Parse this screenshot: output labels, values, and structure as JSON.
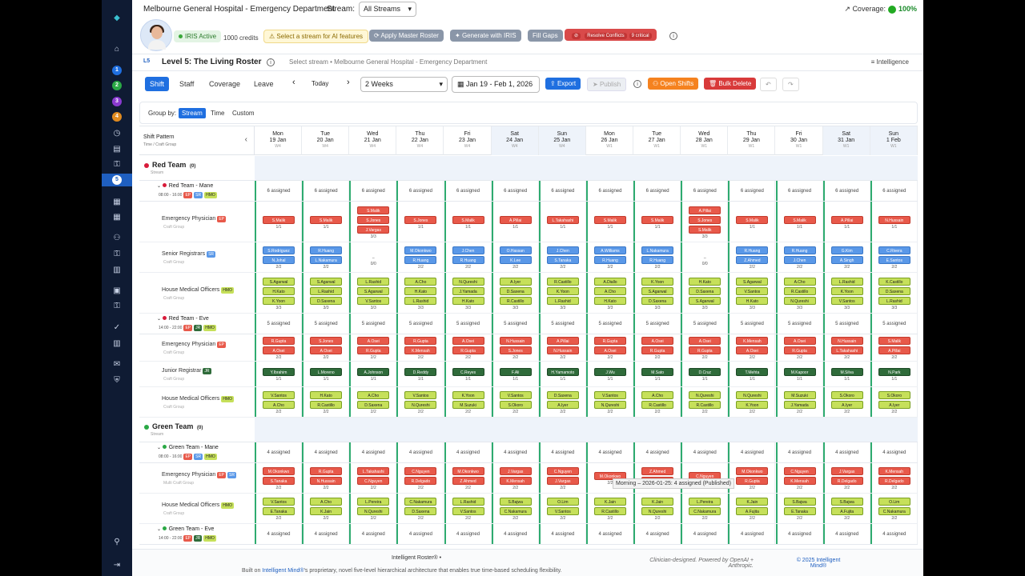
{
  "header": {
    "hospital": "Melbourne General Hospital - Emergency Department",
    "stream_label": "Stream:",
    "stream_value": "All Streams",
    "coverage_label": "Coverage:",
    "coverage_value": "100%"
  },
  "ai": {
    "iris": "IRIS Active",
    "credits": "1000 credits",
    "warn": "Select a stream for AI features",
    "apply": "Apply Master Roster",
    "generate": "Generate with IRIS",
    "fill": "Fill Gaps",
    "resolve": "Resolve Conflicts",
    "critical": "9 critical"
  },
  "title": {
    "level": "L5",
    "name": "Level 5: The Living Roster",
    "breadcrumb": "Select stream • Melbourne General Hospital - Emergency Department",
    "intelligence": "Intelligence"
  },
  "toolbar": {
    "tabs": [
      "Shift",
      "Staff",
      "Coverage",
      "Leave"
    ],
    "today": "Today",
    "range": "2 Weeks",
    "dates": "Jan 19 - Feb 1, 2026",
    "export": "Export",
    "publish": "Publish",
    "open_shifts": "Open Shifts",
    "bulk_delete": "Bulk Delete"
  },
  "groupby": {
    "label": "Group by:",
    "options": [
      "Stream",
      "Time",
      "Custom"
    ]
  },
  "grid": {
    "col_title": "Shift Pattern",
    "col_sub": "Time / Craft Group",
    "days": [
      {
        "d": "Mon",
        "dt": "19 Jan",
        "w": "W4"
      },
      {
        "d": "Tue",
        "dt": "20 Jan",
        "w": "W4"
      },
      {
        "d": "Wed",
        "dt": "21 Jan",
        "w": "W4"
      },
      {
        "d": "Thu",
        "dt": "22 Jan",
        "w": "W4"
      },
      {
        "d": "Fri",
        "dt": "23 Jan",
        "w": "W4"
      },
      {
        "d": "Sat",
        "dt": "24 Jan",
        "w": "W4"
      },
      {
        "d": "Sun",
        "dt": "25 Jan",
        "w": "W4"
      },
      {
        "d": "Mon",
        "dt": "26 Jan",
        "w": "W1"
      },
      {
        "d": "Tue",
        "dt": "27 Jan",
        "w": "W1"
      },
      {
        "d": "Wed",
        "dt": "28 Jan",
        "w": "W1"
      },
      {
        "d": "Thu",
        "dt": "29 Jan",
        "w": "W1"
      },
      {
        "d": "Fri",
        "dt": "30 Jan",
        "w": "W1"
      },
      {
        "d": "Sat",
        "dt": "31 Jan",
        "w": "W1"
      },
      {
        "d": "Sun",
        "dt": "1 Feb",
        "w": "W1"
      }
    ],
    "teams": [
      {
        "name": "Red Team",
        "count": "(0)",
        "sub": "Stream",
        "color": "#d81b3a",
        "shifts": [
          {
            "name": "Red Team - Mane",
            "time": "08:00 - 16:00",
            "tags": [
              "EP",
              "SR",
              "HMO"
            ],
            "assigned": [
              "6 assigned",
              "6 assigned",
              "6 assigned",
              "6 assigned",
              "6 assigned",
              "6 assigned",
              "6 assigned",
              "6 assigned",
              "6 assigned",
              "6 assigned",
              "6 assigned",
              "6 assigned",
              "6 assigned",
              "6 assigned"
            ],
            "crafts": [
              {
                "name": "Emergency Physician",
                "tag": "EP",
                "type": "ep",
                "h": 51,
                "cells": [
                  [
                    "S.Malik",
                    "1/1"
                  ],
                  [
                    "S.Malik",
                    "1/1"
                  ],
                  [
                    "S.Malik|S.Jones|J.Vargas",
                    "3/3"
                  ],
                  [
                    "S.Jones",
                    "1/1"
                  ],
                  [
                    "S.Malik",
                    "1/1"
                  ],
                  [
                    "A.Pillai",
                    "1/1"
                  ],
                  [
                    "L.Takahashi",
                    "1/1"
                  ],
                  [
                    "S.Malik",
                    "1/1"
                  ],
                  [
                    "S.Malik",
                    "1/1"
                  ],
                  [
                    "A.Pillai|S.Jones|S.Malik",
                    "3/3"
                  ],
                  [
                    "S.Malik",
                    "1/1"
                  ],
                  [
                    "S.Malik",
                    "1/1"
                  ],
                  [
                    "A.Pillai",
                    "1/1"
                  ],
                  [
                    "N.Hussain",
                    "1/1"
                  ]
                ]
              },
              {
                "name": "Senior Registrars",
                "tag": "SR",
                "type": "sr",
                "h": 38,
                "cells": [
                  [
                    "S.Rodriguez|N.Johal",
                    "2/2"
                  ],
                  [
                    "R.Huang|L.Nakamura",
                    "2/2"
                  ],
                  [
                    "",
                    "0/0"
                  ],
                  [
                    "M.Okonkwo|R.Huang",
                    "2/2"
                  ],
                  [
                    "J.Chen|R.Huang",
                    "2/2"
                  ],
                  [
                    "O.Hassan|K.Lee",
                    "2/2"
                  ],
                  [
                    "J.Chen|S.Tanaka",
                    "2/2"
                  ],
                  [
                    "A.Williams|R.Huang",
                    "2/2"
                  ],
                  [
                    "L.Nakamura|R.Huang",
                    "2/2"
                  ],
                  [
                    "",
                    "0/0"
                  ],
                  [
                    "R.Huang|Z.Ahmed",
                    "2/2"
                  ],
                  [
                    "R.Huang|J.Chen",
                    "2/2"
                  ],
                  [
                    "G.Kim|A.Singh",
                    "2/2"
                  ],
                  [
                    "C.Rivera|E.Santos",
                    "2/2"
                  ]
                ]
              },
              {
                "name": "House Medical Officers",
                "tag": "HMO",
                "type": "hmo",
                "h": 51,
                "cells": [
                  [
                    "S.Agarwal|H.Kato|K.Yoon",
                    "3/3"
                  ],
                  [
                    "S.Agarwal|L.Rashid|D.Saxena",
                    "3/3"
                  ],
                  [
                    "L.Rashid|S.Agarwal|V.Santos",
                    "3/3"
                  ],
                  [
                    "A.Cho|H.Kato|L.Rashid",
                    "3/3"
                  ],
                  [
                    "N.Qureshi|J.Yamada|H.Kato",
                    "3/3"
                  ],
                  [
                    "A.Iyer|D.Saxena|R.Castillo",
                    "3/3"
                  ],
                  [
                    "R.Castillo|K.Yoon|L.Rashid",
                    "3/3"
                  ],
                  [
                    "A.Diallo|A.Cho|H.Kato",
                    "3/3"
                  ],
                  [
                    "K.Yoon|S.Agarwal|D.Saxena",
                    "3/3"
                  ],
                  [
                    "H.Kato|D.Saxena|S.Agarwal",
                    "3/3"
                  ],
                  [
                    "S.Agarwal|V.Santos|H.Kato",
                    "3/3"
                  ],
                  [
                    "A.Cho|R.Castillo|N.Qureshi",
                    "3/3"
                  ],
                  [
                    "L.Rashid|K.Yoon|V.Santos",
                    "3/3"
                  ],
                  [
                    "K.Castillo|D.Saxena|L.Rashid",
                    "3/3"
                  ]
                ]
              }
            ]
          },
          {
            "name": "Red Team - Eve",
            "time": "14:00 - 22:00",
            "tags": [
              "EP",
              "JR",
              "HMO"
            ],
            "assigned": [
              "5 assigned",
              "5 assigned",
              "5 assigned",
              "5 assigned",
              "5 assigned",
              "5 assigned",
              "5 assigned",
              "5 assigned",
              "5 assigned",
              "5 assigned",
              "5 assigned",
              "5 assigned",
              "5 assigned",
              "5 assigned"
            ],
            "crafts": [
              {
                "name": "Emergency Physician",
                "tag": "EP",
                "type": "ep",
                "h": 34,
                "cells": [
                  [
                    "R.Gupta|A.Osei",
                    "2/2"
                  ],
                  [
                    "S.Jones|A.Osei",
                    "2/2"
                  ],
                  [
                    "A.Osei|R.Gupta",
                    "2/2"
                  ],
                  [
                    "R.Gupta|K.Mensah",
                    "2/2"
                  ],
                  [
                    "A.Osei|R.Gupta",
                    "2/2"
                  ],
                  [
                    "N.Hussain|S.Jones",
                    "2/2"
                  ],
                  [
                    "A.Pillai|N.Hussain",
                    "2/2"
                  ],
                  [
                    "R.Gupta|A.Osei",
                    "2/2"
                  ],
                  [
                    "A.Osei|R.Gupta",
                    "2/2"
                  ],
                  [
                    "A.Osei|R.Gupta",
                    "2/2"
                  ],
                  [
                    "K.Mensah|A.Osei",
                    "2/2"
                  ],
                  [
                    "A.Osei|R.Gupta",
                    "2/2"
                  ],
                  [
                    "N.Hussain|L.Takahashi",
                    "2/2"
                  ],
                  [
                    "S.Malik|A.Pillai",
                    "2/2"
                  ]
                ]
              },
              {
                "name": "Junior Registrar",
                "tag": "JR",
                "type": "jr",
                "h": 32,
                "cells": [
                  [
                    "Y.Ibrahim",
                    "1/1"
                  ],
                  [
                    "L.Moreno",
                    "1/1"
                  ],
                  [
                    "A.Johnson",
                    "1/1"
                  ],
                  [
                    "D.Reddy",
                    "1/1"
                  ],
                  [
                    "C.Reyes",
                    "1/1"
                  ],
                  [
                    "F.Ali",
                    "1/1"
                  ],
                  [
                    "H.Yamamoto",
                    "1/1"
                  ],
                  [
                    "J.Wu",
                    "1/1"
                  ],
                  [
                    "M.Sato",
                    "1/1"
                  ],
                  [
                    "D.Cruz",
                    "1/1"
                  ],
                  [
                    "T.Mehta",
                    "1/1"
                  ],
                  [
                    "M.Kapoor",
                    "1/1"
                  ],
                  [
                    "M.Silva",
                    "1/1"
                  ],
                  [
                    "N.Park",
                    "1/1"
                  ]
                ]
              },
              {
                "name": "House Medical Officers",
                "tag": "HMO",
                "type": "hmo",
                "h": 38,
                "cells": [
                  [
                    "V.Santos|A.Cho",
                    "2/2"
                  ],
                  [
                    "H.Kato|R.Castillo",
                    "2/2"
                  ],
                  [
                    "A.Cho|D.Saxena",
                    "2/2"
                  ],
                  [
                    "V.Santos|N.Qureshi",
                    "2/2"
                  ],
                  [
                    "K.Yoon|M.Suzuki",
                    "2/2"
                  ],
                  [
                    "V.Santos|S.Okoro",
                    "2/2"
                  ],
                  [
                    "D.Saxena|A.Iyer",
                    "2/2"
                  ],
                  [
                    "V.Santos|N.Qureshi",
                    "2/2"
                  ],
                  [
                    "A.Cho|R.Castillo",
                    "2/2"
                  ],
                  [
                    "N.Qureshi|R.Castillo",
                    "2/2"
                  ],
                  [
                    "N.Qureshi|K.Yoon",
                    "2/2"
                  ],
                  [
                    "M.Suzuki|J.Yamada",
                    "2/2"
                  ],
                  [
                    "S.Okoro|A.Iyer",
                    "2/2"
                  ],
                  [
                    "S.Okoro|A.Iyer",
                    "2/2"
                  ]
                ]
              }
            ]
          }
        ]
      },
      {
        "name": "Green Team",
        "count": "(0)",
        "sub": "Stream",
        "color": "#2aa845",
        "shifts": [
          {
            "name": "Green Team - Mane",
            "time": "08:00 - 16:00",
            "tags": [
              "EP",
              "SR",
              "HMO"
            ],
            "assigned": [
              "4 assigned",
              "4 assigned",
              "4 assigned",
              "4 assigned",
              "4 assigned",
              "4 assigned",
              "4 assigned",
              "4 assigned",
              "4 assigned",
              "4 assigned",
              "4 assigned",
              "4 assigned",
              "4 assigned",
              "4 assigned"
            ],
            "crafts": [
              {
                "name": "Emergency Physician",
                "tag": "EP",
                "type": "ep",
                "h": 38,
                "sub": "Multi Craft Group",
                "tags": [
                  "EP",
                  "SR"
                ],
                "cells": [
                  [
                    "M.Okonkwo|S.Tanaka",
                    "2/2"
                  ],
                  [
                    "R.Gupta|N.Hussain",
                    "2/2"
                  ],
                  [
                    "L.Takahashi|C.Nguyen",
                    "2/2"
                  ],
                  [
                    "C.Nguyen|R.Delgado",
                    "2/2"
                  ],
                  [
                    "M.Okonkwo|Z.Ahmed",
                    "2/2"
                  ],
                  [
                    "J.Vargas|K.Mensah",
                    "2/2"
                  ],
                  [
                    "C.Nguyen|J.Vargas",
                    "2/2"
                  ],
                  [
                    "M.Okonkwo|",
                    "2/2"
                  ],
                  [
                    "Z.Ahmed|K.Mensah",
                    "2/2"
                  ],
                  [
                    "C.Nguyen|",
                    "2/2"
                  ],
                  [
                    "M.Okonkwo|R.Gupta",
                    "2/2"
                  ],
                  [
                    "C.Nguyen|K.Mensah",
                    "2/2"
                  ],
                  [
                    "J.Vargas|R.Delgado",
                    "2/2"
                  ],
                  [
                    "K.Mensah|R.Delgado",
                    "2/2"
                  ]
                ]
              },
              {
                "name": "House Medical Officers",
                "tag": "HMO",
                "type": "hmo",
                "h": 38,
                "cells": [
                  [
                    "V.Santos|E.Tanaka",
                    "2/2"
                  ],
                  [
                    "A.Cho|K.Jain",
                    "2/2"
                  ],
                  [
                    "L.Pereira|N.Qureshi",
                    "2/2"
                  ],
                  [
                    "C.Nakamura|D.Saxena",
                    "2/2"
                  ],
                  [
                    "L.Rashid|V.Santos",
                    "2/2"
                  ],
                  [
                    "S.Bajwa|C.Nakamura",
                    "2/2"
                  ],
                  [
                    "O.Lim|V.Santos",
                    "2/2"
                  ],
                  [
                    "K.Jain|R.Castillo",
                    "2/2"
                  ],
                  [
                    "K.Jain|N.Qureshi",
                    "2/2"
                  ],
                  [
                    "L.Pereira|C.Nakamura",
                    "2/2"
                  ],
                  [
                    "K.Jain|A.Fujita",
                    "2/2"
                  ],
                  [
                    "S.Bajwa|E.Tanaka",
                    "2/2"
                  ],
                  [
                    "S.Bajwa|A.Fujita",
                    "2/2"
                  ],
                  [
                    "O.Lim|C.Nakamura",
                    "2/2"
                  ]
                ]
              }
            ]
          },
          {
            "name": "Green Team - Eve",
            "time": "14:00 - 22:00",
            "tags": [
              "EP",
              "JR",
              "HMO"
            ],
            "assigned": [
              "4 assigned",
              "4 assigned",
              "4 assigned",
              "4 assigned",
              "4 assigned",
              "4 assigned",
              "4 assigned",
              "4 assigned",
              "4 assigned",
              "4 assigned",
              "4 assigned",
              "4 assigned",
              "4 assigned",
              "4 assigned"
            ],
            "crafts": []
          }
        ]
      }
    ]
  },
  "tooltip": "Morning – 2026-01-25: 4 assigned (Published)",
  "footer": {
    "brand": "Intelligent Roster®  •",
    "desc_pre": "Built on ",
    "desc_link": "Intelligent Mind®",
    "desc_post": "'s proprietary, novel five-level hierarchical architecture that enables true time-based scheduling flexibility.",
    "powered": "Clinician-designed. Powered by OpenAI + Anthropic.",
    "copyright": "© 2025 Intelligent Mind®"
  },
  "colors": {
    "accent": "#1f6fe0",
    "ep": "#e8594a",
    "sr": "#5a98e8",
    "hmo": "#c6e05a",
    "jr": "#2f6b3a",
    "staff_line": "#2eab6f"
  }
}
